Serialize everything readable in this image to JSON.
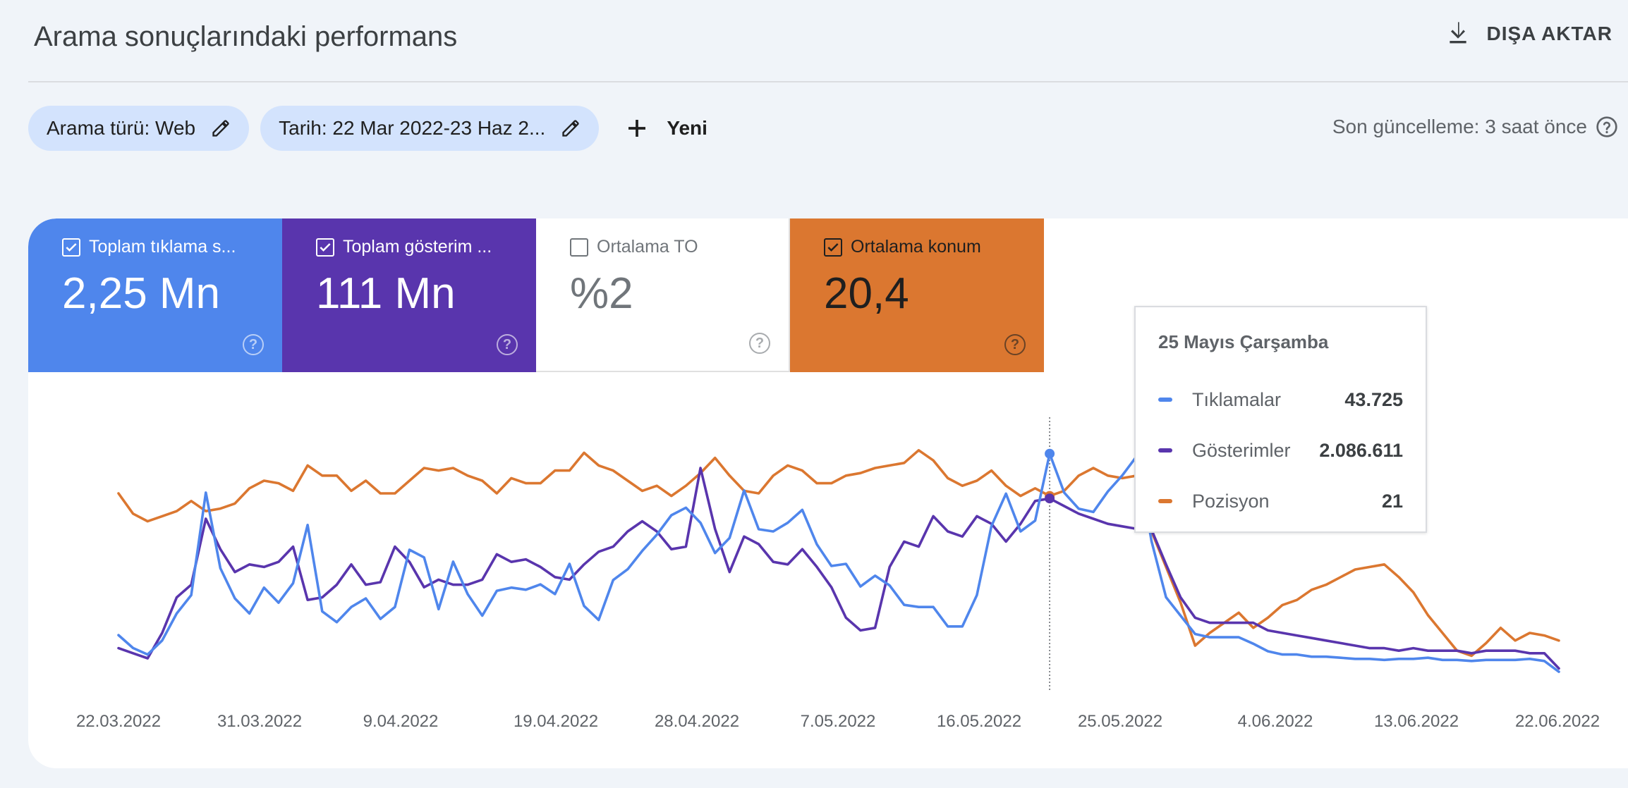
{
  "header": {
    "title": "Arama sonuçlarındaki performans",
    "export_label": "DIŞA AKTAR",
    "export_icon": "download-icon"
  },
  "filters": {
    "search_type_label": "Arama türü: Web",
    "date_label": "Tarih: 22 Mar 2022-23 Haz 2...",
    "new_label": "Yeni",
    "last_update": "Son güncelleme: 3 saat önce"
  },
  "metrics": [
    {
      "label": "Toplam tıklama s...",
      "value": "2,25 Mn",
      "checked": true,
      "color": "#4f86ec"
    },
    {
      "label": "Toplam gösterim ...",
      "value": "111 Mn",
      "checked": true,
      "color": "#5935ad"
    },
    {
      "label": "Ortalama TO",
      "value": "%2",
      "checked": false,
      "color": "#ffffff"
    },
    {
      "label": "Ortalama konum",
      "value": "20,4",
      "checked": true,
      "color": "#db7730"
    }
  ],
  "tooltip": {
    "date": "25 Mayıs Çarşamba",
    "rows": [
      {
        "label": "Tıklamalar",
        "value": "43.725",
        "color": "#4f86ec"
      },
      {
        "label": "Gösterimler",
        "value": "2.086.611",
        "color": "#5935ad"
      },
      {
        "label": "Pozisyon",
        "value": "21",
        "color": "#db7730"
      }
    ]
  },
  "chart_data": {
    "type": "line",
    "x_tick_labels": [
      "22.03.2022",
      "31.03.2022",
      "9.04.2022",
      "19.04.2022",
      "28.04.2022",
      "7.05.2022",
      "16.05.2022",
      "25.05.2022",
      "4.06.2022",
      "13.06.2022",
      "22.06.2022"
    ],
    "x_start": "2022-03-22",
    "highlight_date": "2022-05-25",
    "grid": false,
    "y_axes_shown": false,
    "series": [
      {
        "name": "Tıklamalar",
        "color": "#4f86ec",
        "values": [
          35000,
          33800,
          33200,
          34500,
          37000,
          38700,
          48200,
          41200,
          38400,
          37000,
          39400,
          38000,
          39800,
          45200,
          37200,
          36200,
          37600,
          38400,
          36500,
          37600,
          42900,
          42200,
          37400,
          41800,
          38800,
          36800,
          39100,
          39400,
          39200,
          39700,
          38800,
          41600,
          37700,
          36400,
          40100,
          41100,
          42800,
          44300,
          46100,
          46800,
          45400,
          42600,
          44000,
          48400,
          44800,
          44600,
          45400,
          46600,
          43400,
          41400,
          41600,
          39500,
          40500,
          39600,
          37800,
          37600,
          37600,
          35800,
          35800,
          38700,
          45100,
          48100,
          44600,
          45600,
          51800,
          48200,
          46700,
          46400,
          48300,
          49800,
          51600,
          43700,
          38500,
          36800,
          35100,
          34800,
          34800,
          34800,
          34200,
          33500,
          33200,
          33200,
          33000,
          33000,
          32900,
          32800,
          32800,
          32700,
          32800,
          32800,
          32900,
          32700,
          32700,
          32600,
          32700,
          32700,
          32700,
          32800,
          32600,
          31600
        ]
      },
      {
        "name": "Gösterimler",
        "color": "#5935ad",
        "values": [
          1620000,
          1600000,
          1580000,
          1680000,
          1820000,
          1870000,
          2130000,
          2010000,
          1920000,
          1950000,
          1940000,
          1960000,
          2020000,
          1810000,
          1820000,
          1870000,
          1950000,
          1870000,
          1880000,
          2020000,
          1960000,
          1860000,
          1890000,
          1870000,
          1870000,
          1890000,
          1990000,
          1960000,
          1970000,
          1940000,
          1900000,
          1890000,
          1950000,
          2000000,
          2020000,
          2080000,
          2120000,
          2080000,
          2010000,
          2020000,
          2330000,
          2090000,
          1920000,
          2060000,
          2030000,
          1960000,
          1950000,
          2010000,
          1940000,
          1860000,
          1740000,
          1690000,
          1700000,
          1940000,
          2040000,
          2020000,
          2140000,
          2080000,
          2060000,
          2140000,
          2110000,
          2040000,
          2110000,
          2200000,
          2210000,
          2180000,
          2150000,
          2130000,
          2110000,
          2100000,
          2090000,
          2086611,
          1950000,
          1820000,
          1740000,
          1720000,
          1720000,
          1720000,
          1720000,
          1690000,
          1680000,
          1670000,
          1660000,
          1650000,
          1640000,
          1630000,
          1620000,
          1620000,
          1610000,
          1620000,
          1610000,
          1610000,
          1610000,
          1600000,
          1610000,
          1610000,
          1610000,
          1600000,
          1600000,
          1540000
        ]
      },
      {
        "name": "Pozisyon",
        "color": "#db7730",
        "values": [
          19.5,
          20.3,
          20.6,
          20.4,
          20.2,
          19.8,
          20.2,
          20.1,
          19.9,
          19.3,
          19.0,
          19.1,
          19.4,
          18.4,
          18.8,
          18.8,
          19.4,
          19.0,
          19.5,
          19.5,
          19.0,
          18.5,
          18.6,
          18.5,
          18.8,
          19.0,
          19.5,
          18.9,
          19.1,
          19.1,
          18.6,
          18.6,
          17.9,
          18.4,
          18.6,
          19.0,
          19.4,
          19.2,
          19.6,
          19.2,
          18.7,
          18.1,
          18.8,
          19.4,
          19.5,
          18.8,
          18.4,
          18.6,
          19.1,
          19.1,
          18.8,
          18.7,
          18.5,
          18.4,
          18.3,
          17.8,
          18.2,
          18.9,
          19.2,
          19.0,
          18.6,
          19.2,
          19.6,
          19.3,
          19.6,
          19.4,
          18.8,
          18.5,
          18.8,
          18.9,
          18.8,
          21.0,
          22.4,
          23.8,
          25.5,
          25.0,
          24.6,
          24.2,
          24.8,
          24.4,
          23.9,
          23.7,
          23.3,
          23.1,
          22.8,
          22.5,
          22.4,
          22.3,
          22.8,
          23.4,
          24.3,
          25.0,
          25.7,
          25.9,
          25.4,
          24.8,
          25.3,
          25.0,
          25.1,
          25.3
        ]
      }
    ]
  }
}
